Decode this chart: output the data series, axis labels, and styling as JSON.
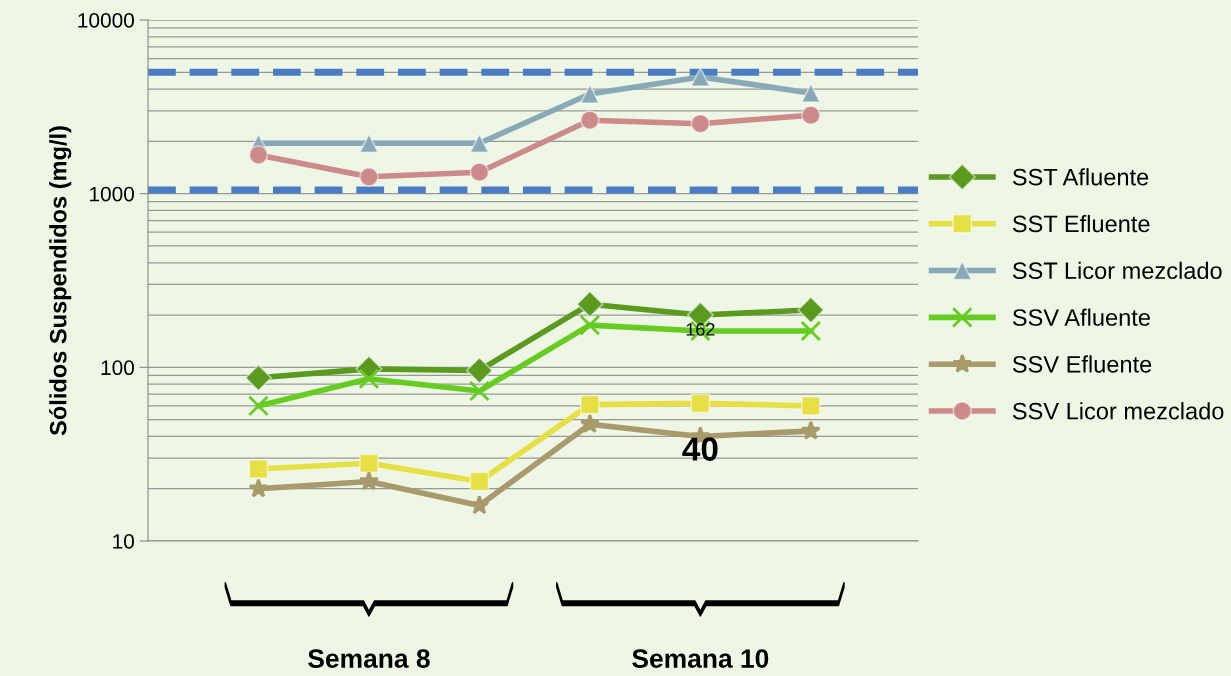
{
  "chart_data": {
    "type": "line",
    "ylabel": "Sólidos Suspendidos (mg/l)",
    "categories": [
      null,
      null,
      null,
      null,
      null,
      null
    ],
    "log": "y",
    "ylim": [
      10,
      10000
    ],
    "yticks": [
      10,
      100,
      1000,
      10000
    ],
    "grid": "y",
    "legend": "right",
    "series": [
      {
        "name": "SST Afluente",
        "color": "#5a9a1e",
        "marker": "diamond",
        "values": [
          87,
          98,
          96,
          231,
          200,
          214
        ]
      },
      {
        "name": "SST Efluente",
        "color": "#e6e045",
        "marker": "square",
        "values": [
          26,
          28,
          22,
          61,
          62,
          60
        ]
      },
      {
        "name": "SST Licor mezclado",
        "color": "#88aab8",
        "marker": "triangle",
        "values": [
          1950,
          1950,
          1950,
          3750,
          4700,
          3800
        ]
      },
      {
        "name": "SSV Afluente",
        "color": "#66cc22",
        "marker": "cross",
        "values": [
          60,
          86,
          73,
          175,
          162,
          162
        ],
        "value_labels": [
          null,
          null,
          null,
          null,
          "162",
          null
        ]
      },
      {
        "name": "SSV Efluente",
        "color": "#a89a6a",
        "marker": "star",
        "values": [
          20,
          22,
          16,
          47,
          40,
          43
        ],
        "value_labels": [
          null,
          null,
          null,
          null,
          "40",
          null
        ]
      },
      {
        "name": "SSV Licor mezclado",
        "color": "#cc8a8a",
        "marker": "circle",
        "values": [
          1670,
          1250,
          1330,
          2650,
          2530,
          2830
        ]
      }
    ],
    "ref_lines": [
      {
        "axis": "y",
        "value": 5000,
        "color": "#4a7cc4",
        "line_style": "dashed"
      },
      {
        "axis": "y",
        "value": 1050,
        "color": "#4a7cc4",
        "line_style": "dashed"
      }
    ],
    "annotations": [
      "Semana 8",
      "Semana 10"
    ]
  }
}
